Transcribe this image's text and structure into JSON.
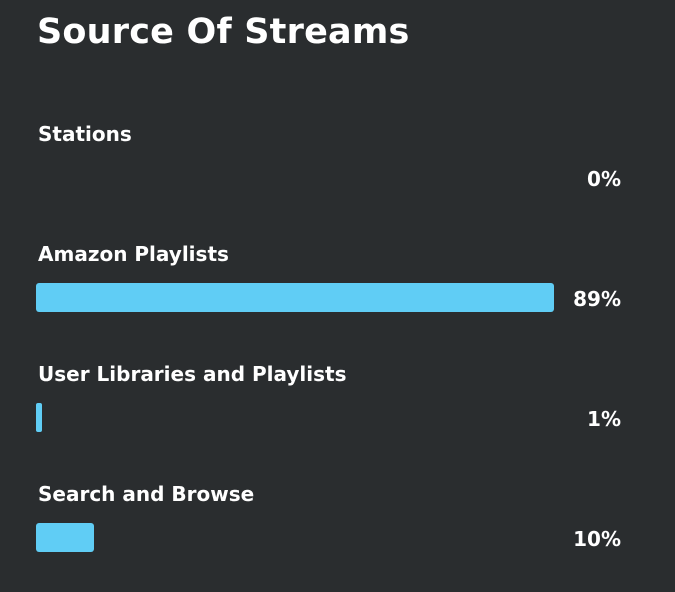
{
  "title": "Source Of Streams",
  "chart_data": {
    "type": "bar",
    "orientation": "horizontal",
    "title": "Source Of Streams",
    "categories": [
      "Stations",
      "Amazon Playlists",
      "User Libraries and Playlists",
      "Search and Browse"
    ],
    "values": [
      0,
      89,
      1,
      10
    ],
    "value_labels": [
      "0%",
      "89%",
      "1%",
      "10%"
    ],
    "unit": "%",
    "xlim": [
      0,
      89
    ],
    "bar_color": "#60cdf5",
    "background_color": "#2a2d2f",
    "grid": false,
    "legend": "none"
  }
}
